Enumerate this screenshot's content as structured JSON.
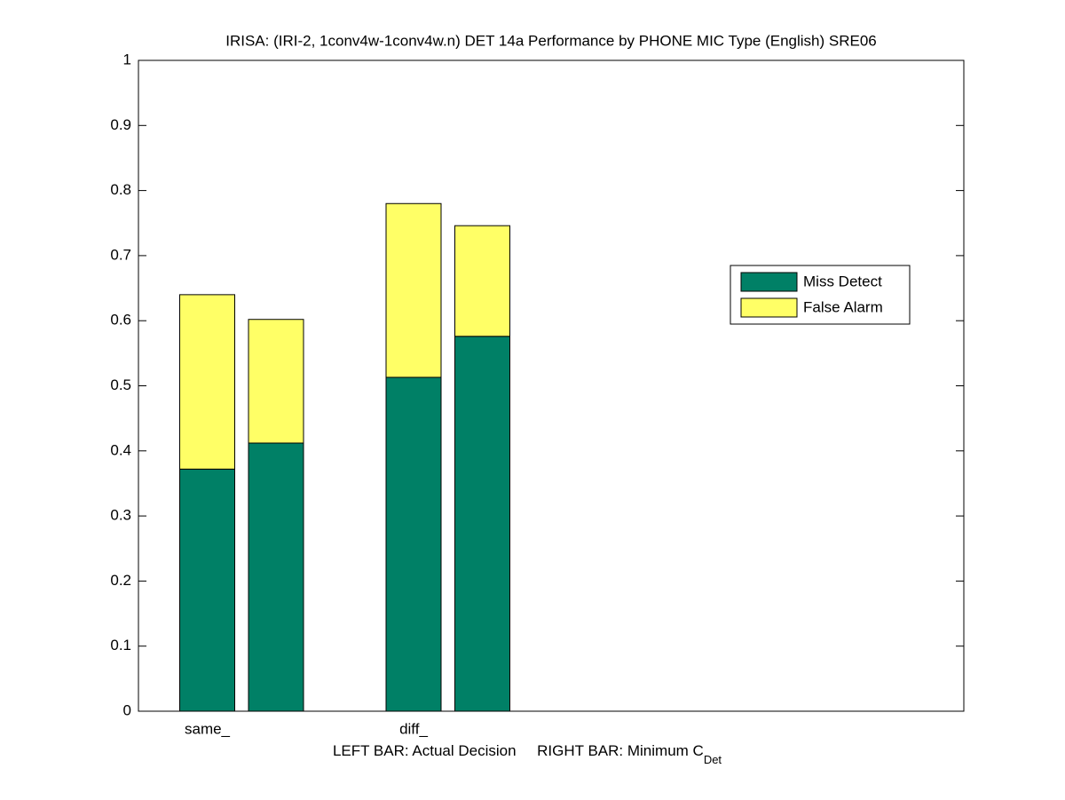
{
  "chart_data": {
    "type": "stacked_bar",
    "title": "IRISA: (IRI-2, 1conv4w-1conv4w.n) DET 14a Performance by PHONE MIC Type (English) SRE06",
    "xlabel": "LEFT BAR: Actual Decision     RIGHT BAR: Minimum C",
    "xlabel_subscript": "Det",
    "x": [
      1,
      2,
      4,
      5
    ],
    "xlim": [
      0,
      12
    ],
    "xticks": [
      {
        "value": 1,
        "label": "same_"
      },
      {
        "value": 4,
        "label": "diff_"
      }
    ],
    "ylim": [
      0,
      1
    ],
    "yticks": [
      0,
      0.1,
      0.2,
      0.3,
      0.4,
      0.5,
      0.6,
      0.7,
      0.8,
      0.9,
      1
    ],
    "series": [
      {
        "name": "Miss Detect",
        "color": "#008066",
        "values": [
          0.372,
          0.412,
          0.513,
          0.576
        ]
      },
      {
        "name": "False Alarm",
        "color": "#ffff66",
        "values": [
          0.268,
          0.19,
          0.267,
          0.17
        ]
      }
    ],
    "legend": "right"
  }
}
